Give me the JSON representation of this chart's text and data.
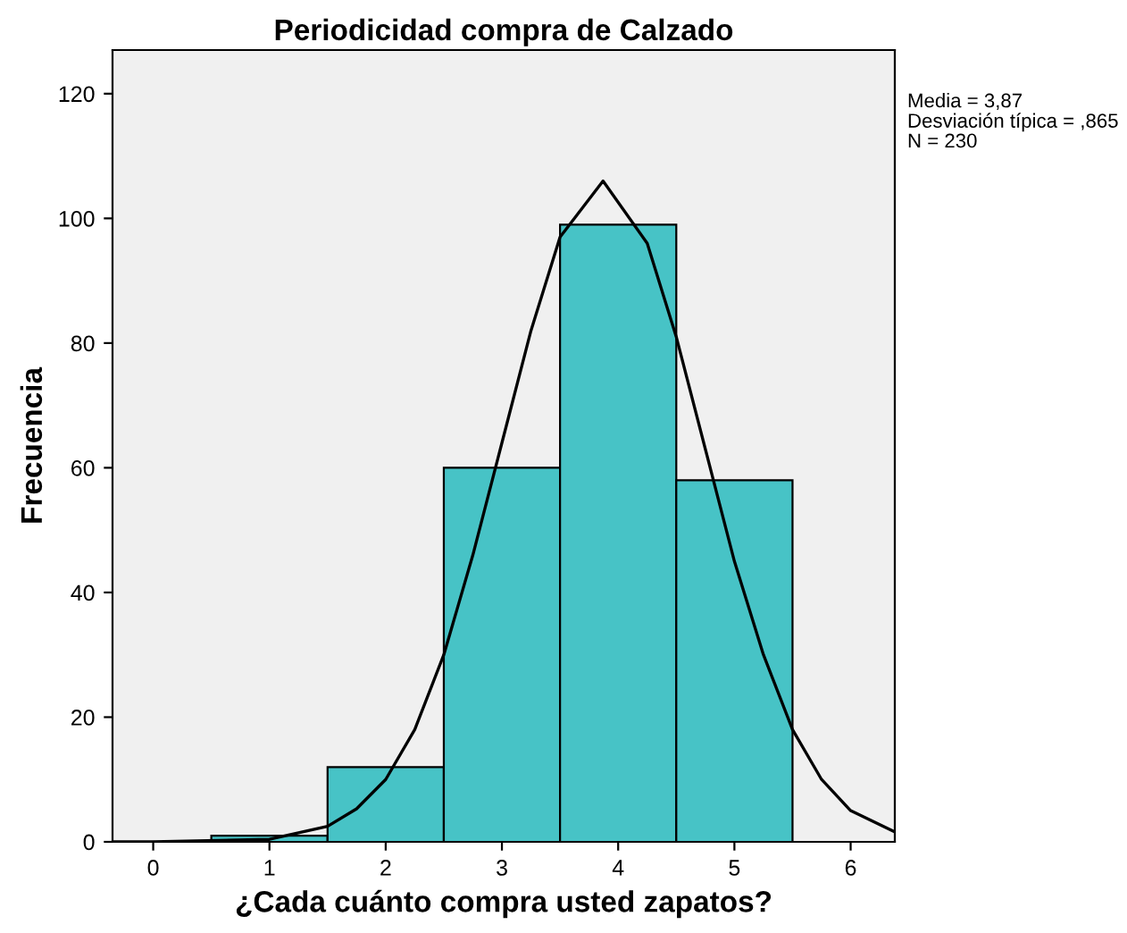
{
  "chart_data": {
    "type": "histogram",
    "title": "Periodicidad compra de Calzado",
    "xlabel": "¿Cada cuánto compra usted zapatos?",
    "ylabel": "Frecuencia",
    "bins": [
      0.5,
      1.5,
      2.5,
      3.5,
      4.5,
      5.5
    ],
    "values": [
      1,
      12,
      60,
      99,
      58
    ],
    "color": "#47c3c6",
    "series": [
      {
        "type": "line",
        "color": "#000000",
        "x": [
          -0.35,
          0,
          1,
          1.5,
          1.75,
          2,
          2.25,
          2.5,
          2.75,
          3,
          3.25,
          3.5,
          3.87,
          4.25,
          4.5,
          4.75,
          5,
          5.25,
          5.5,
          5.75,
          6,
          6.38
        ],
        "values": [
          0,
          0,
          0.4,
          2.5,
          5.3,
          10,
          18,
          30,
          46,
          64,
          82,
          97,
          106,
          96,
          81,
          63,
          45,
          30,
          18,
          10,
          5,
          1.6
        ]
      }
    ],
    "xlim": [
      -0.35,
      6.38
    ],
    "xticks": [
      0,
      1,
      2,
      3,
      4,
      5,
      6
    ],
    "ylim": [
      0,
      127
    ],
    "yticks": [
      0,
      20,
      40,
      60,
      80,
      100,
      120
    ],
    "grid": false,
    "legend": false,
    "annotations": [
      "Media = 3,87",
      "Desviación típica = ,865",
      "N = 230"
    ]
  }
}
